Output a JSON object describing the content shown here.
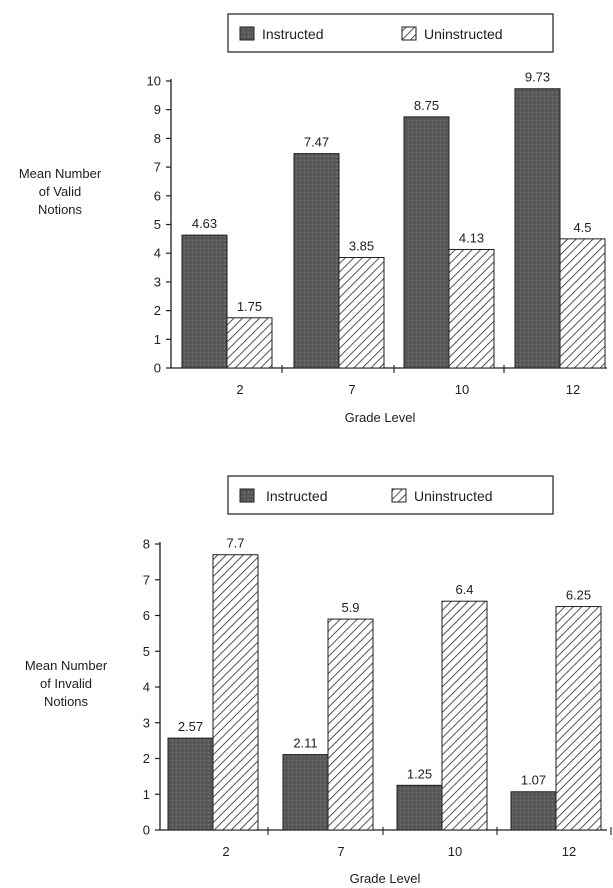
{
  "chart_data": [
    {
      "type": "bar",
      "categories": [
        "2",
        "7",
        "10",
        "12"
      ],
      "series": [
        {
          "name": "Instructed",
          "values": [
            4.63,
            7.47,
            8.75,
            9.73
          ]
        },
        {
          "name": "Uninstructed",
          "values": [
            1.75,
            3.85,
            4.13,
            4.5
          ]
        }
      ],
      "data_labels": [
        [
          "4.63",
          "7.47",
          "8.75",
          "9.73"
        ],
        [
          "1.75",
          "3.85",
          "4.13",
          "4.5"
        ]
      ],
      "ylabel_lines": [
        "Mean Number",
        "of  Valid",
        "Notions"
      ],
      "xlabel": "Grade Level",
      "ylim": [
        0,
        10
      ],
      "yticks": [
        "0",
        "1",
        "2",
        "3",
        "4",
        "5",
        "6",
        "7",
        "8",
        "9",
        "10"
      ],
      "legend_position": "top",
      "grid": false
    },
    {
      "type": "bar",
      "categories": [
        "2",
        "7",
        "10",
        "12"
      ],
      "series": [
        {
          "name": "Instructed",
          "values": [
            2.57,
            2.11,
            1.25,
            1.07
          ]
        },
        {
          "name": "Uninstructed",
          "values": [
            7.7,
            5.9,
            6.4,
            6.25
          ]
        }
      ],
      "data_labels": [
        [
          "2.57",
          "2.11",
          "1.25",
          "1.07"
        ],
        [
          "7.7",
          "5.9",
          "6.4",
          "6.25"
        ]
      ],
      "ylabel_lines": [
        "Mean Number",
        "of  Invalid",
        "Notions"
      ],
      "xlabel": "Grade Level",
      "ylim": [
        0,
        8
      ],
      "yticks": [
        "0",
        "1",
        "2",
        "3",
        "4",
        "5",
        "6",
        "7",
        "8"
      ],
      "legend_position": "top",
      "grid": false
    }
  ],
  "colors": {
    "instructed": "#5a5a5a",
    "hatch": "#2a2a2a",
    "axis": "#1e1e1e"
  }
}
